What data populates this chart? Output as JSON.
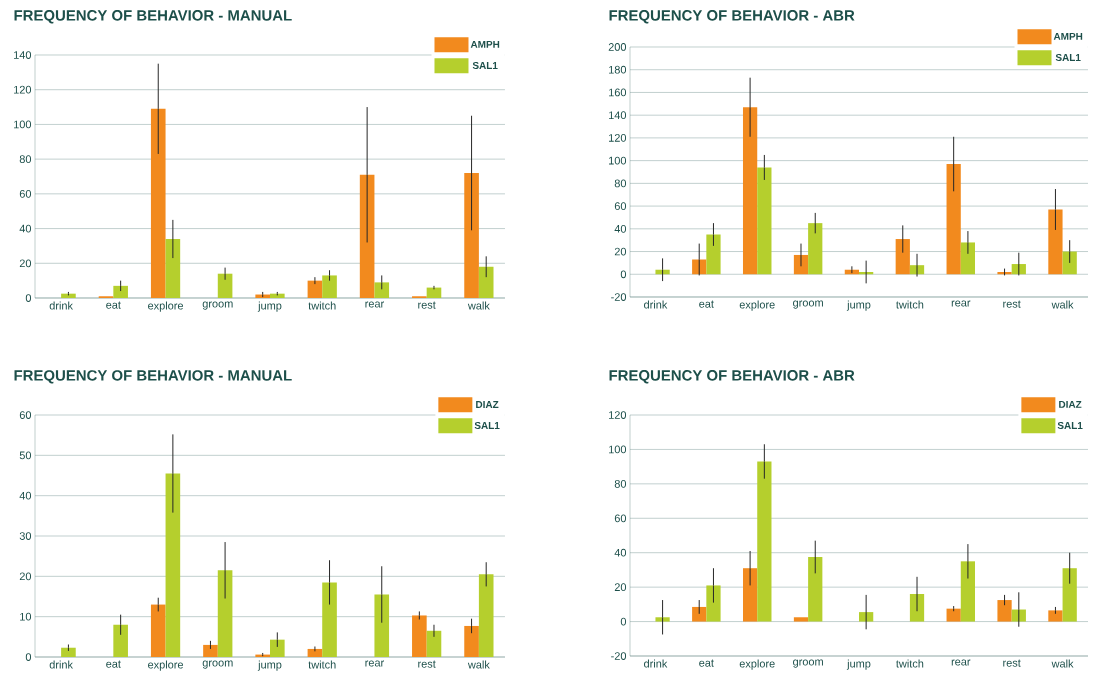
{
  "chart_data": [
    {
      "type": "bar",
      "title": "FREQUENCY OF BEHAVIOR - MANUAL",
      "categories": [
        "drink",
        "eat",
        "explore",
        "groom",
        "jump",
        "twitch",
        "rear",
        "rest",
        "walk"
      ],
      "series": [
        {
          "name": "AMPH",
          "color": "#f28a1e",
          "values": [
            0,
            1,
            109,
            0,
            2,
            10,
            71,
            1,
            72
          ],
          "errors": [
            null,
            null,
            26,
            null,
            1.5,
            2,
            39,
            null,
            33
          ]
        },
        {
          "name": "SAL1",
          "color": "#b5cf2d",
          "values": [
            2.5,
            7,
            34,
            14,
            2.5,
            13,
            9,
            6,
            18
          ],
          "errors": [
            1,
            3,
            11,
            3.5,
            1,
            3,
            4,
            1,
            6
          ]
        }
      ],
      "ylim": [
        0,
        140
      ],
      "yticks": [
        0,
        20,
        40,
        60,
        80,
        100,
        120,
        140
      ],
      "grid": "y",
      "legend": "top right"
    },
    {
      "type": "bar",
      "title": "FREQUENCY OF BEHAVIOR - ABR",
      "categories": [
        "drink",
        "eat",
        "explore",
        "groom",
        "jump",
        "twitch",
        "rear",
        "rest",
        "walk"
      ],
      "series": [
        {
          "name": "AMPH",
          "color": "#f28a1e",
          "values": [
            0,
            13,
            147,
            17,
            4,
            31,
            97,
            2,
            57
          ],
          "errors": [
            null,
            14,
            26,
            10,
            3,
            12,
            24,
            3,
            18
          ]
        },
        {
          "name": "SAL1",
          "color": "#b5cf2d",
          "values": [
            4,
            35,
            94,
            45,
            2,
            8,
            28,
            9,
            20
          ],
          "errors": [
            10,
            10,
            11,
            9,
            10,
            10,
            10,
            10,
            10
          ]
        }
      ],
      "ylim": [
        -20,
        200
      ],
      "yticks": [
        -20,
        0,
        20,
        40,
        60,
        80,
        100,
        120,
        140,
        160,
        180,
        200
      ],
      "grid": "y",
      "legend": "top right"
    },
    {
      "type": "bar",
      "title": "FREQUENCY OF BEHAVIOR - MANUAL",
      "categories": [
        "drink",
        "eat",
        "explore",
        "groom",
        "jump",
        "twitch",
        "rear",
        "rest",
        "walk"
      ],
      "series": [
        {
          "name": "DIAZ",
          "color": "#f28a1e",
          "values": [
            0,
            0,
            13,
            3,
            0.6,
            2,
            0,
            10.3,
            7.7
          ],
          "errors": [
            null,
            null,
            1.7,
            1,
            0.4,
            0.6,
            null,
            1,
            1.8
          ]
        },
        {
          "name": "SAL1",
          "color": "#b5cf2d",
          "values": [
            2.3,
            8,
            45.5,
            21.5,
            4.3,
            18.5,
            15.5,
            6.5,
            20.5
          ],
          "errors": [
            0.8,
            2.5,
            9.7,
            7,
            1.8,
            5.5,
            7,
            1.5,
            3
          ]
        }
      ],
      "ylim": [
        0,
        60
      ],
      "yticks": [
        0,
        10,
        20,
        30,
        40,
        50,
        60
      ],
      "grid": "y",
      "legend": "top right"
    },
    {
      "type": "bar",
      "title": "FREQUENCY OF BEHAVIOR - ABR",
      "categories": [
        "drink",
        "eat",
        "explore",
        "groom",
        "jump",
        "twitch",
        "rear",
        "rest",
        "walk"
      ],
      "series": [
        {
          "name": "DIAZ",
          "color": "#f28a1e",
          "values": [
            0,
            8.5,
            31,
            2.5,
            0,
            0,
            7.5,
            12.5,
            6.5
          ],
          "errors": [
            null,
            4,
            10,
            null,
            null,
            null,
            1.5,
            3,
            2
          ]
        },
        {
          "name": "SAL1",
          "color": "#b5cf2d",
          "values": [
            2.5,
            21,
            93,
            37.5,
            5.5,
            16,
            35,
            7,
            31
          ],
          "errors": [
            10,
            10,
            10,
            9.5,
            10,
            10,
            10,
            10,
            9
          ]
        }
      ],
      "ylim": [
        -20,
        120
      ],
      "yticks": [
        -20,
        0,
        20,
        40,
        60,
        80,
        100,
        120
      ],
      "grid": "y",
      "legend": "top right"
    }
  ]
}
